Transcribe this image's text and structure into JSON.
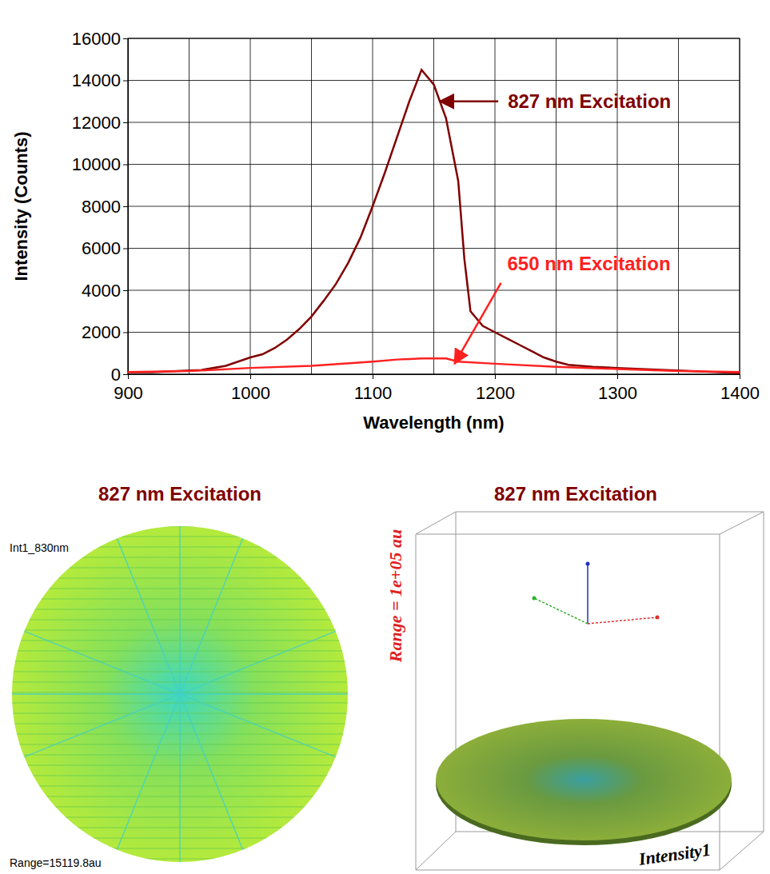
{
  "chart_data": {
    "type": "line",
    "x_label": "Wavelength (nm)",
    "y_label": "Intensity (Counts)",
    "xlim": [
      900,
      1400
    ],
    "xticks": [
      900,
      1000,
      1100,
      1200,
      1300,
      1400
    ],
    "xticks_minor": [
      950,
      1050,
      1150,
      1250,
      1350
    ],
    "ylim": [
      0,
      16000
    ],
    "yticks": [
      0,
      2000,
      4000,
      6000,
      8000,
      10000,
      12000,
      14000,
      16000
    ],
    "grid": true,
    "series": [
      {
        "name": "827 nm Excitation",
        "color": "#800000",
        "x": [
          900,
          920,
          940,
          960,
          980,
          1000,
          1010,
          1020,
          1030,
          1040,
          1050,
          1060,
          1070,
          1080,
          1090,
          1100,
          1110,
          1120,
          1130,
          1140,
          1150,
          1160,
          1170,
          1175,
          1180,
          1190,
          1200,
          1210,
          1220,
          1230,
          1240,
          1250,
          1260,
          1270,
          1280,
          1300,
          1320,
          1340,
          1360,
          1380,
          1400
        ],
        "values": [
          100,
          100,
          150,
          200,
          400,
          800,
          950,
          1250,
          1650,
          2150,
          2750,
          3500,
          4300,
          5300,
          6500,
          8000,
          9600,
          11300,
          13000,
          14500,
          13800,
          12200,
          9200,
          5500,
          3000,
          2300,
          2000,
          1700,
          1400,
          1100,
          800,
          600,
          450,
          400,
          350,
          300,
          250,
          200,
          150,
          100,
          50
        ]
      },
      {
        "name": "650 nm Excitation",
        "color": "#ff2020",
        "x": [
          900,
          950,
          1000,
          1050,
          1100,
          1120,
          1140,
          1160,
          1170,
          1200,
          1250,
          1300,
          1350,
          1400
        ],
        "values": [
          100,
          150,
          300,
          400,
          600,
          700,
          750,
          750,
          600,
          500,
          350,
          250,
          150,
          100
        ]
      }
    ],
    "annotations": [
      {
        "text": "827 nm Excitation",
        "x": 1155,
        "y": 13000,
        "color": "#800000"
      },
      {
        "text": "650 nm Excitation",
        "x": 1167,
        "y": 500,
        "color": "#ff2020"
      }
    ]
  },
  "images": [
    {
      "title": "827 nm Excitation",
      "label": "Int1_830nm",
      "range_label": "Range=15119.8au"
    },
    {
      "title": "827 nm Excitation",
      "range_label": "Range = 1e+05 au",
      "axis_label": "Intensity1"
    }
  ]
}
